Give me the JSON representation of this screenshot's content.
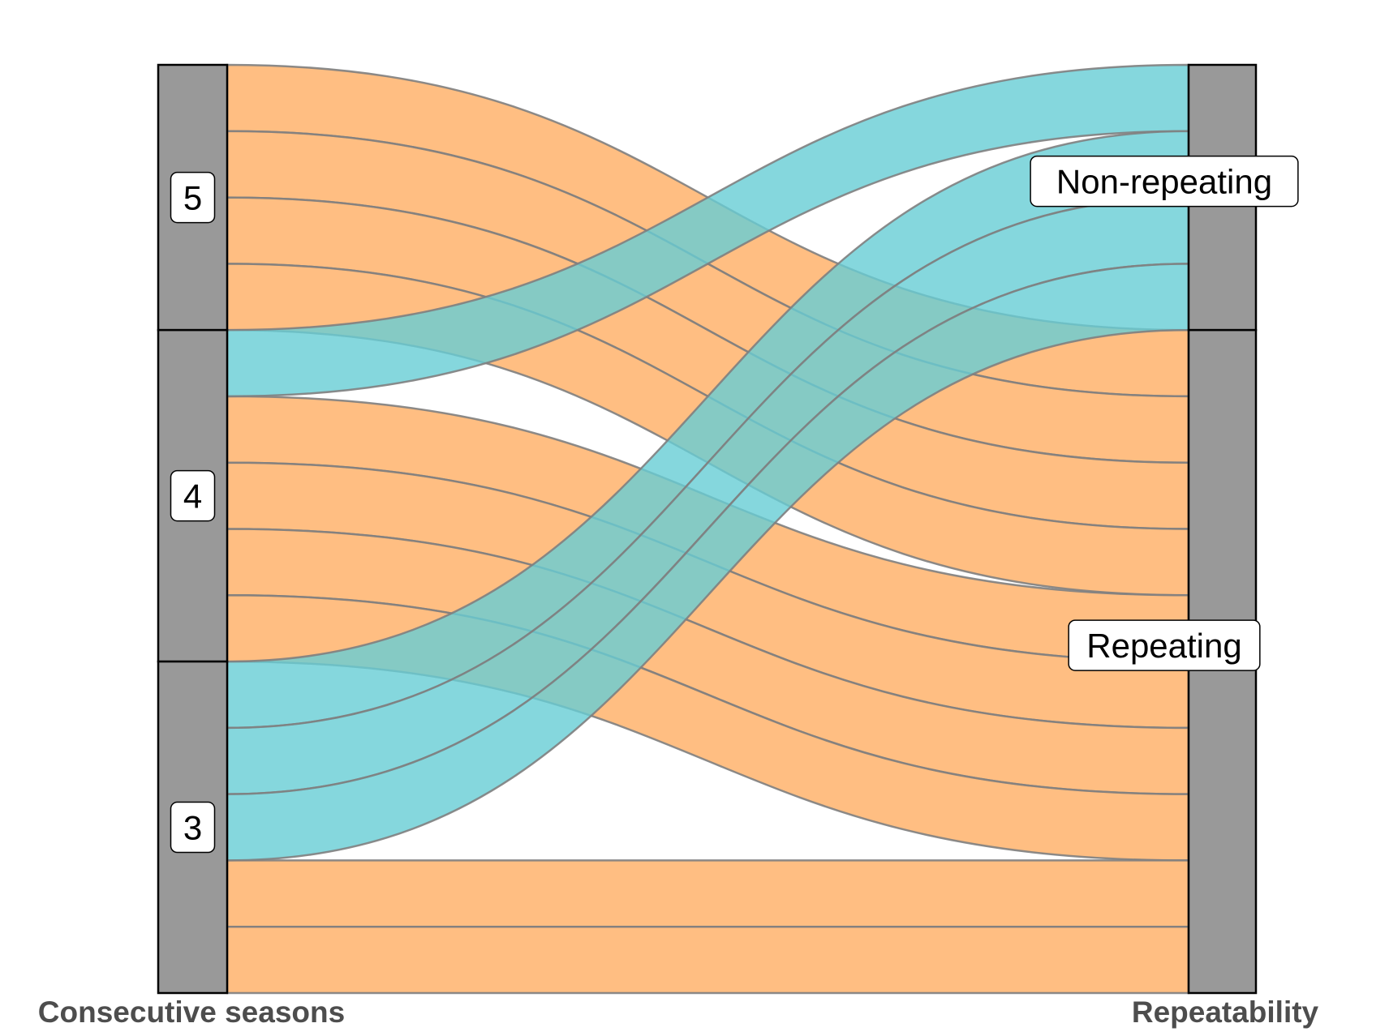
{
  "chart_data": {
    "type": "alluvial",
    "axes": [
      {
        "name": "Consecutive seasons",
        "strata": [
          "5",
          "4",
          "3"
        ]
      },
      {
        "name": "Repeatability",
        "strata": [
          "Non-repeating",
          "Repeating"
        ]
      }
    ],
    "flows": [
      {
        "from": "5",
        "to": "Non-repeating",
        "count": 0
      },
      {
        "from": "5",
        "to": "Repeating",
        "count": 4
      },
      {
        "from": "4",
        "to": "Non-repeating",
        "count": 1
      },
      {
        "from": "4",
        "to": "Repeating",
        "count": 4
      },
      {
        "from": "3",
        "to": "Non-repeating",
        "count": 3
      },
      {
        "from": "3",
        "to": "Repeating",
        "count": 2
      }
    ],
    "stratum_totals": {
      "5": 4,
      "4": 5,
      "3": 5,
      "Non-repeating": 4,
      "Repeating": 10
    },
    "colors": {
      "Non-repeating": "#66CDD4",
      "Repeating": "#FFAE63",
      "stratum": "#999999"
    }
  }
}
